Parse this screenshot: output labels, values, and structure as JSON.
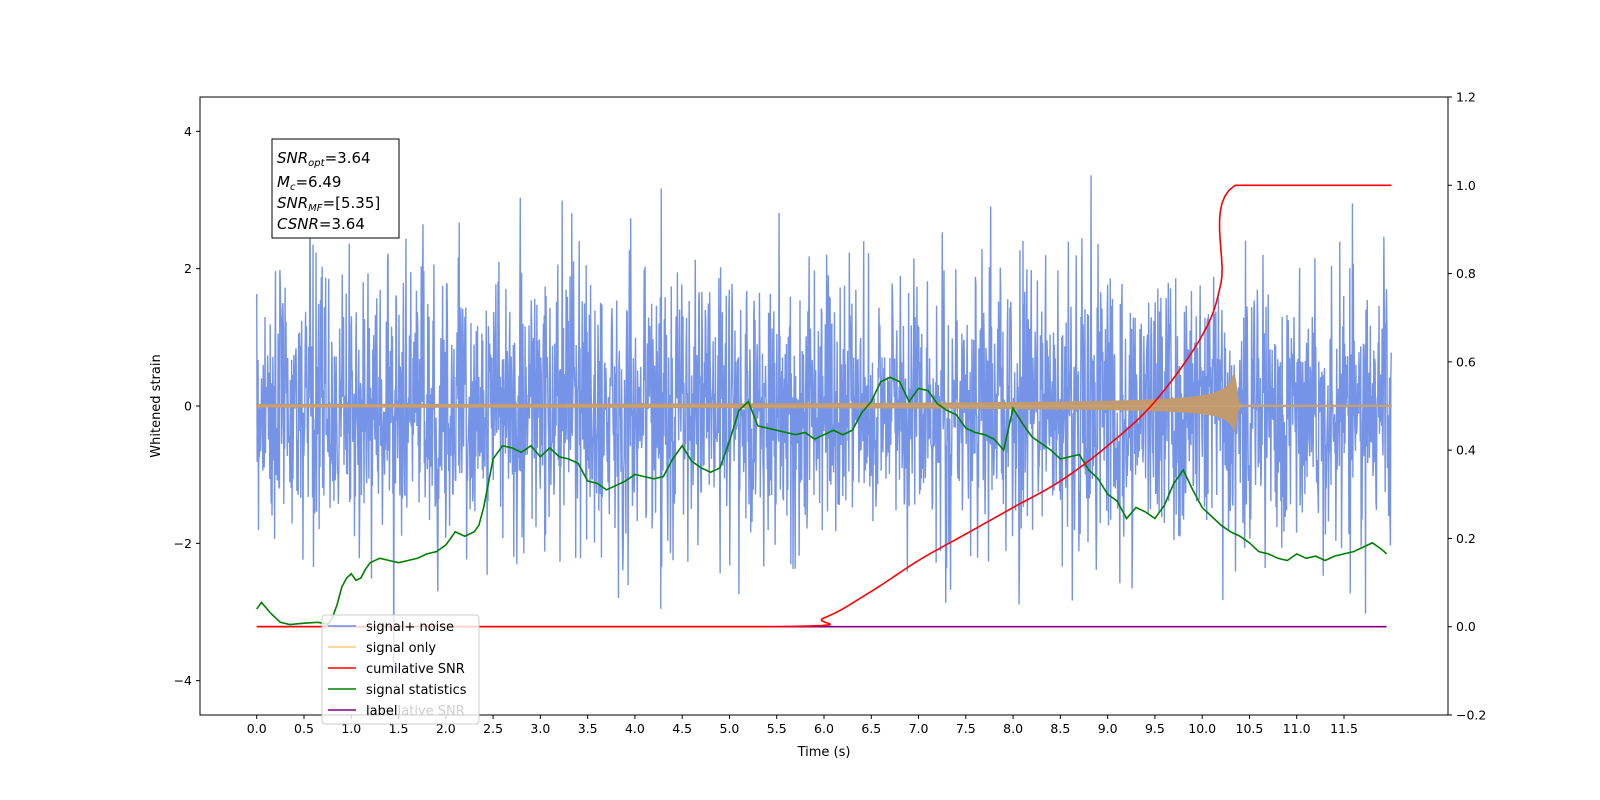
{
  "chart_data": {
    "type": "line",
    "xlabel": "Time (s)",
    "ylabel": "Whitened strain",
    "xlim": [
      -0.6,
      12.6
    ],
    "ylim": [
      -4.5,
      4.5
    ],
    "y2lim": [
      -0.2,
      1.2
    ],
    "xticks": [
      "0.0",
      "0.5",
      "1.0",
      "1.5",
      "2.0",
      "2.5",
      "3.0",
      "3.5",
      "4.0",
      "4.5",
      "5.0",
      "5.5",
      "6.0",
      "6.5",
      "7.0",
      "7.5",
      "8.0",
      "8.5",
      "9.0",
      "9.5",
      "10.0",
      "10.5",
      "11.0",
      "11.5"
    ],
    "yticks": [
      "4",
      "2",
      "0",
      "−2",
      "−4"
    ],
    "y2ticks": [
      "1.2",
      "1.0",
      "0.8",
      "0.6",
      "0.4",
      "0.2",
      "0.0",
      "−0.2"
    ],
    "annotation": {
      "lines": [
        {
          "base": "SNR",
          "sub": "opt",
          "rest": "=3.64"
        },
        {
          "base": "M",
          "sub": "c",
          "rest": "=6.49"
        },
        {
          "base": "SNR",
          "sub": "MF",
          "rest": "=[5.35]"
        },
        {
          "base": "CSNR",
          "sub": "",
          "rest": "=3.64"
        }
      ]
    },
    "legend": {
      "placement": "lower-left",
      "entries": [
        {
          "label": "signal+ noise",
          "color": "#6f8ee6"
        },
        {
          "label": "signal only",
          "color": "#ffc87a"
        },
        {
          "label": "cumilative SNR",
          "color": "#ff0000"
        },
        {
          "label": "signal statistics",
          "color": "#008000"
        },
        {
          "label": "label",
          "color": "#800080"
        },
        {
          "label": "cumilative SNR",
          "color": "#dddddd"
        }
      ]
    },
    "series": [
      {
        "name": "signal+ noise",
        "color": "#6f8ee6",
        "axis": "left",
        "kind": "noise",
        "x_range": [
          0.0,
          12.0
        ],
        "sigma": 1.0,
        "y_extent": [
          -4.1,
          4.1
        ]
      },
      {
        "name": "signal only",
        "color": "#c19b6e",
        "axis": "left",
        "kind": "chirp",
        "x_range": [
          0.0,
          12.0
        ],
        "merger_time": 10.35,
        "peak_amplitude": 0.55
      },
      {
        "name": "cumilative SNR",
        "color": "#ff0000",
        "axis": "right",
        "x": [
          0.0,
          5.5,
          6.0,
          6.5,
          7.0,
          7.5,
          8.0,
          8.5,
          9.0,
          9.5,
          10.0,
          10.2,
          10.35,
          12.0
        ],
        "values": [
          0.0,
          0.0,
          0.02,
          0.08,
          0.15,
          0.21,
          0.27,
          0.33,
          0.41,
          0.51,
          0.66,
          0.78,
          1.0,
          1.0
        ]
      },
      {
        "name": "signal statistics",
        "color": "#008000",
        "axis": "right",
        "x": [
          0.0,
          0.05,
          0.15,
          0.25,
          0.35,
          0.5,
          0.65,
          0.75,
          0.8,
          0.85,
          0.9,
          0.95,
          1.0,
          1.05,
          1.1,
          1.15,
          1.2,
          1.3,
          1.4,
          1.5,
          1.6,
          1.7,
          1.8,
          1.9,
          2.0,
          2.1,
          2.2,
          2.3,
          2.35,
          2.4,
          2.5,
          2.6,
          2.7,
          2.8,
          2.9,
          3.0,
          3.1,
          3.2,
          3.3,
          3.4,
          3.5,
          3.6,
          3.7,
          3.8,
          3.9,
          4.0,
          4.1,
          4.2,
          4.3,
          4.4,
          4.5,
          4.6,
          4.7,
          4.8,
          4.9,
          5.0,
          5.1,
          5.2,
          5.3,
          5.4,
          5.5,
          5.6,
          5.7,
          5.8,
          5.9,
          6.0,
          6.1,
          6.2,
          6.3,
          6.4,
          6.5,
          6.6,
          6.7,
          6.8,
          6.9,
          7.0,
          7.1,
          7.2,
          7.3,
          7.4,
          7.5,
          7.6,
          7.7,
          7.8,
          7.9,
          8.0,
          8.1,
          8.2,
          8.3,
          8.4,
          8.5,
          8.6,
          8.7,
          8.8,
          8.9,
          9.0,
          9.1,
          9.2,
          9.3,
          9.4,
          9.5,
          9.6,
          9.7,
          9.8,
          9.9,
          10.0,
          10.1,
          10.2,
          10.3,
          10.4,
          10.5,
          10.6,
          10.7,
          10.8,
          10.9,
          11.0,
          11.1,
          11.2,
          11.3,
          11.4,
          11.5,
          11.6,
          11.7,
          11.8,
          11.9,
          11.95
        ],
        "values": [
          0.04,
          0.055,
          0.03,
          0.01,
          0.005,
          0.008,
          0.01,
          0.005,
          0.02,
          0.05,
          0.09,
          0.11,
          0.12,
          0.105,
          0.11,
          0.13,
          0.145,
          0.155,
          0.15,
          0.145,
          0.15,
          0.155,
          0.165,
          0.17,
          0.185,
          0.215,
          0.205,
          0.215,
          0.23,
          0.27,
          0.38,
          0.41,
          0.405,
          0.395,
          0.41,
          0.385,
          0.405,
          0.385,
          0.38,
          0.37,
          0.33,
          0.325,
          0.31,
          0.32,
          0.33,
          0.345,
          0.34,
          0.335,
          0.34,
          0.38,
          0.41,
          0.375,
          0.36,
          0.35,
          0.36,
          0.42,
          0.49,
          0.51,
          0.455,
          0.45,
          0.445,
          0.44,
          0.435,
          0.44,
          0.425,
          0.435,
          0.445,
          0.435,
          0.445,
          0.485,
          0.51,
          0.555,
          0.565,
          0.555,
          0.51,
          0.54,
          0.535,
          0.505,
          0.49,
          0.48,
          0.45,
          0.44,
          0.435,
          0.425,
          0.4,
          0.495,
          0.46,
          0.43,
          0.415,
          0.4,
          0.38,
          0.385,
          0.39,
          0.355,
          0.335,
          0.3,
          0.285,
          0.245,
          0.27,
          0.26,
          0.245,
          0.275,
          0.325,
          0.355,
          0.31,
          0.27,
          0.25,
          0.23,
          0.215,
          0.205,
          0.19,
          0.17,
          0.165,
          0.155,
          0.15,
          0.165,
          0.155,
          0.16,
          0.15,
          0.16,
          0.165,
          0.17,
          0.18,
          0.19,
          0.175,
          0.165
        ]
      },
      {
        "name": "label",
        "color": "#800080",
        "axis": "right",
        "x": [
          0.0,
          11.95
        ],
        "values": [
          0.0,
          0.0
        ]
      }
    ]
  }
}
